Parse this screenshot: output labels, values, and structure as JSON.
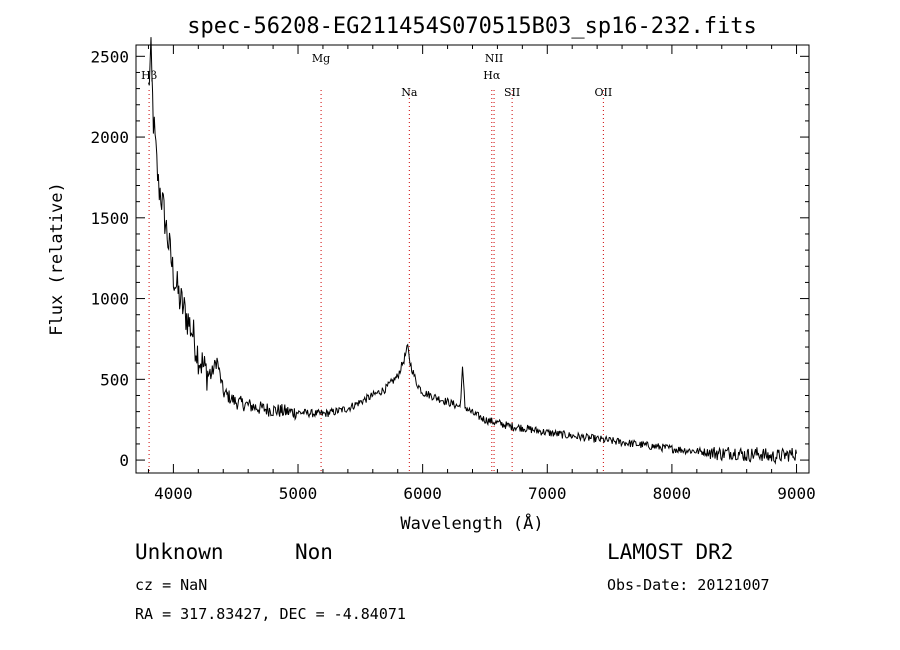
{
  "chart_data": {
    "type": "line",
    "title": "spec-56208-EG211454S070515B03_sp16-232.fits",
    "xlabel": "Wavelength (Å)",
    "ylabel": "Flux (relative)",
    "xlim": [
      3700,
      9100
    ],
    "ylim": [
      -80,
      2570
    ],
    "x_ticks": [
      4000,
      5000,
      6000,
      7000,
      8000,
      9000
    ],
    "x_tick_labels": [
      "4000",
      "5000",
      "6000",
      "7000",
      "8000",
      "9000"
    ],
    "y_ticks": [
      0,
      500,
      1000,
      1500,
      2000,
      2500
    ],
    "y_tick_labels": [
      "0",
      "500",
      "1000",
      "1500",
      "2000",
      "2500"
    ],
    "line_color": "#000000",
    "marker_color": "#cc0000",
    "series": [
      {
        "values_description": "optical spectrum flux",
        "x": [
          3800,
          3820,
          3840,
          3860,
          3880,
          3900,
          3950,
          4000,
          4050,
          4100,
          4150,
          4200,
          4250,
          4300,
          4350,
          4400,
          4500,
          4600,
          4700,
          4800,
          4900,
          5000,
          5100,
          5200,
          5300,
          5400,
          5500,
          5600,
          5700,
          5800,
          5850,
          5880,
          5900,
          5950,
          6000,
          6100,
          6200,
          6300,
          6320,
          6340,
          6400,
          6500,
          6600,
          6700,
          6800,
          7000,
          7200,
          7400,
          7600,
          7800,
          8000,
          8200,
          8400,
          8500,
          8600,
          8700,
          8800,
          8900,
          9000
        ],
        "y": [
          2300,
          2500,
          2100,
          1900,
          1700,
          1650,
          1400,
          1150,
          1000,
          900,
          800,
          650,
          560,
          520,
          620,
          420,
          360,
          340,
          320,
          310,
          300,
          295,
          290,
          285,
          300,
          320,
          360,
          400,
          440,
          520,
          620,
          700,
          600,
          480,
          420,
          390,
          360,
          330,
          560,
          330,
          290,
          250,
          230,
          210,
          200,
          170,
          150,
          130,
          110,
          90,
          70,
          55,
          40,
          50,
          30,
          40,
          20,
          30,
          40
        ]
      }
    ],
    "lines": [
      {
        "name": "Hβ",
        "x": 3805,
        "label_row": 1
      },
      {
        "name": "Mg",
        "x": 5185,
        "label_row": 0
      },
      {
        "name": "Na",
        "x": 5893,
        "label_row": 2
      },
      {
        "name": "NII",
        "x": 6573,
        "label_row": 0
      },
      {
        "name": "Hα",
        "x": 6555,
        "label_row": 1
      },
      {
        "name": "SII",
        "x": 6718,
        "label_row": 2
      },
      {
        "name": "OII",
        "x": 7450,
        "label_row": 2
      }
    ]
  },
  "footer": {
    "classification": "Unknown",
    "subclass": "Non",
    "cz": "cz = NaN",
    "radec": "RA = 317.83427, DEC =  -4.84071",
    "survey": "LAMOST DR2",
    "obsdate": "Obs-Date: 20121007"
  }
}
